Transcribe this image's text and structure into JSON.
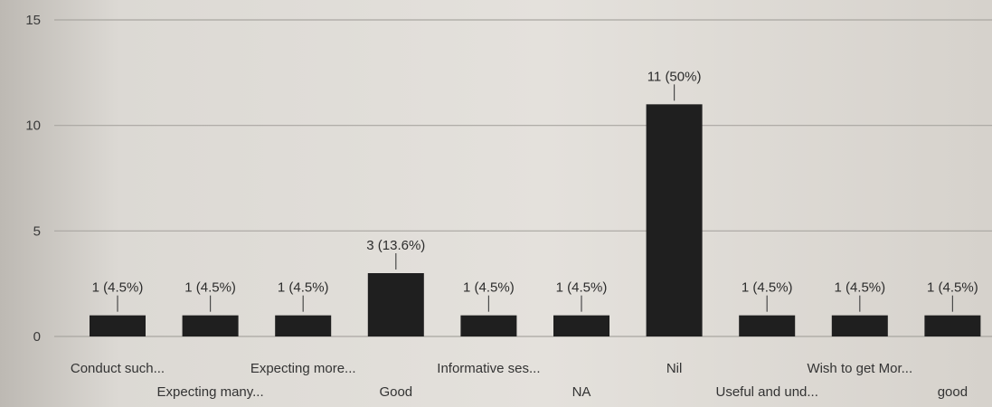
{
  "chart_data": {
    "type": "bar",
    "categories": [
      "Conduct such...",
      "Expecting many...",
      "Expecting more...",
      "Good",
      "Informative ses...",
      "NA",
      "Nil",
      "Useful and und...",
      "Wish to get Mor...",
      "good"
    ],
    "values": [
      1,
      1,
      1,
      3,
      1,
      1,
      11,
      1,
      1,
      1
    ],
    "data_labels": [
      "1 (4.5%)",
      "1 (4.5%)",
      "1 (4.5%)",
      "3 (13.6%)",
      "1 (4.5%)",
      "1 (4.5%)",
      "11 (50%)",
      "1 (4.5%)",
      "1 (4.5%)",
      "1 (4.5%)"
    ],
    "yticks": [
      0,
      5,
      10,
      15
    ],
    "ylim": [
      0,
      15
    ],
    "grid": true,
    "legend": "none",
    "colors": {
      "bar": "#1f1f1f",
      "grid": "#a9a6a1"
    }
  }
}
